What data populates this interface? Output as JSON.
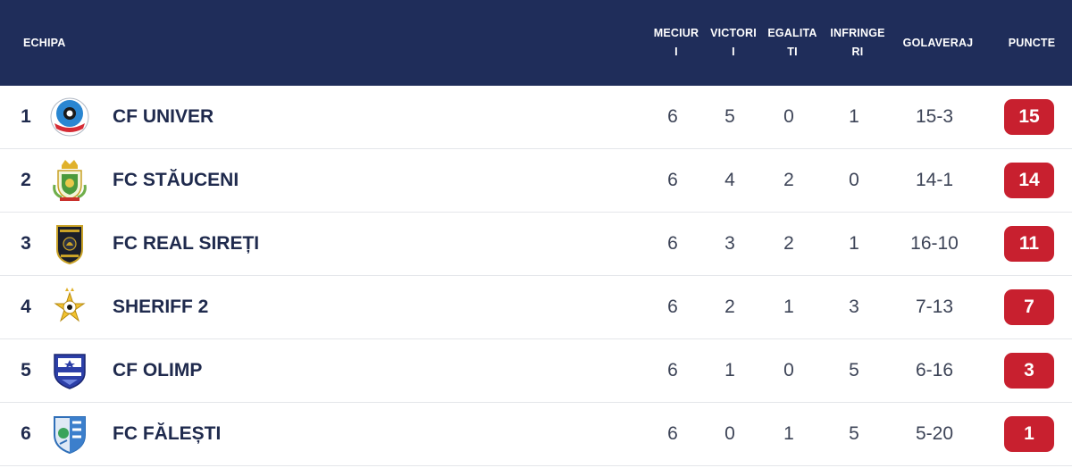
{
  "header": {
    "team": "ECHIPA",
    "played": [
      "MECIUR",
      "I"
    ],
    "wins": [
      "VICTORI",
      "I"
    ],
    "draws": [
      "EGALITA",
      "TI"
    ],
    "losses": [
      "INFRINGE",
      "RI"
    ],
    "goal_diff": "GOLAVERAJ",
    "points": "PUNCTE"
  },
  "rows": [
    {
      "pos": "1",
      "team": "CF UNIVER",
      "logo": "univer-logo",
      "played": "6",
      "wins": "5",
      "draws": "0",
      "losses": "1",
      "goals": "15-3",
      "points": "15"
    },
    {
      "pos": "2",
      "team": "FC STĂUCENI",
      "logo": "stauceni-logo",
      "played": "6",
      "wins": "4",
      "draws": "2",
      "losses": "0",
      "goals": "14-1",
      "points": "14"
    },
    {
      "pos": "3",
      "team": "FC REAL SIREȚI",
      "logo": "real-sireti-logo",
      "played": "6",
      "wins": "3",
      "draws": "2",
      "losses": "1",
      "goals": "16-10",
      "points": "11"
    },
    {
      "pos": "4",
      "team": "SHERIFF 2",
      "logo": "sheriff-logo",
      "played": "6",
      "wins": "2",
      "draws": "1",
      "losses": "3",
      "goals": "7-13",
      "points": "7"
    },
    {
      "pos": "5",
      "team": "CF OLIMP",
      "logo": "olimp-logo",
      "played": "6",
      "wins": "1",
      "draws": "0",
      "losses": "5",
      "goals": "6-16",
      "points": "3"
    },
    {
      "pos": "6",
      "team": "FC FĂLEȘTI",
      "logo": "falesti-logo",
      "played": "6",
      "wins": "0",
      "draws": "1",
      "losses": "5",
      "goals": "5-20",
      "points": "1"
    }
  ],
  "colors": {
    "header_bg": "#1f2d5a",
    "points_badge": "#c8202f",
    "text": "#1f2a4d"
  }
}
